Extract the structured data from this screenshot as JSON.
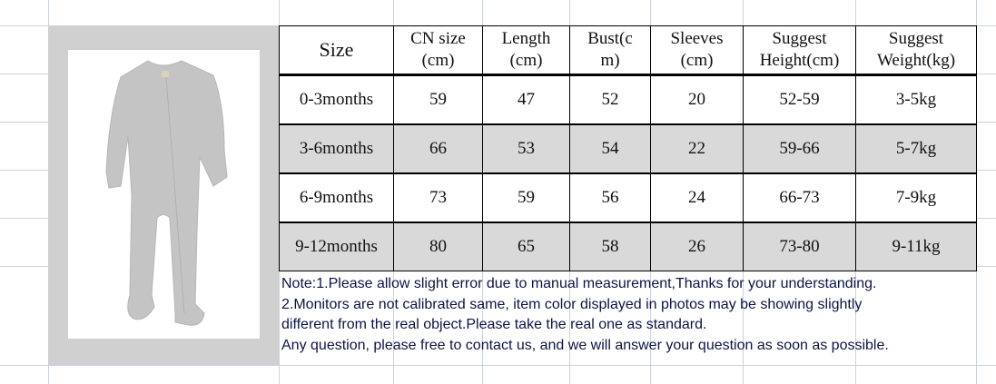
{
  "table": {
    "headers": [
      [
        "Size"
      ],
      [
        "CN size",
        "(cm)"
      ],
      [
        "Length",
        "(cm)"
      ],
      [
        "Bust(c",
        "m)"
      ],
      [
        "Sleeves",
        "(cm)"
      ],
      [
        "Suggest",
        "Height(cm)"
      ],
      [
        "Suggest",
        "Weight(kg)"
      ]
    ],
    "rows": [
      [
        "0-3months",
        "59",
        "47",
        "52",
        "20",
        "52-59",
        "3-5kg"
      ],
      [
        "3-6months",
        "66",
        "53",
        "54",
        "22",
        "59-66",
        "5-7kg"
      ],
      [
        "6-9months",
        "73",
        "59",
        "56",
        "24",
        "66-73",
        "7-9kg"
      ],
      [
        "9-12months",
        "80",
        "65",
        "58",
        "26",
        "73-80",
        "9-11kg"
      ]
    ]
  },
  "notes": [
    "Note:1.Please allow slight error due to manual measurement,Thanks for your understanding.",
    "2.Monitors are not calibrated same, item color displayed in photos may be showing slightly",
    "different from the real object.Please take the real one as standard.",
    "Any question, please free to contact us, and we will answer your question as soon as possible."
  ],
  "colors": {
    "row_shade": "#d9d9d9",
    "panel": "#d0d0d0",
    "note_text": "#0c1445",
    "romper": "#c4c4c4"
  },
  "image": {
    "icon": "gray-footed-romper-photo"
  }
}
